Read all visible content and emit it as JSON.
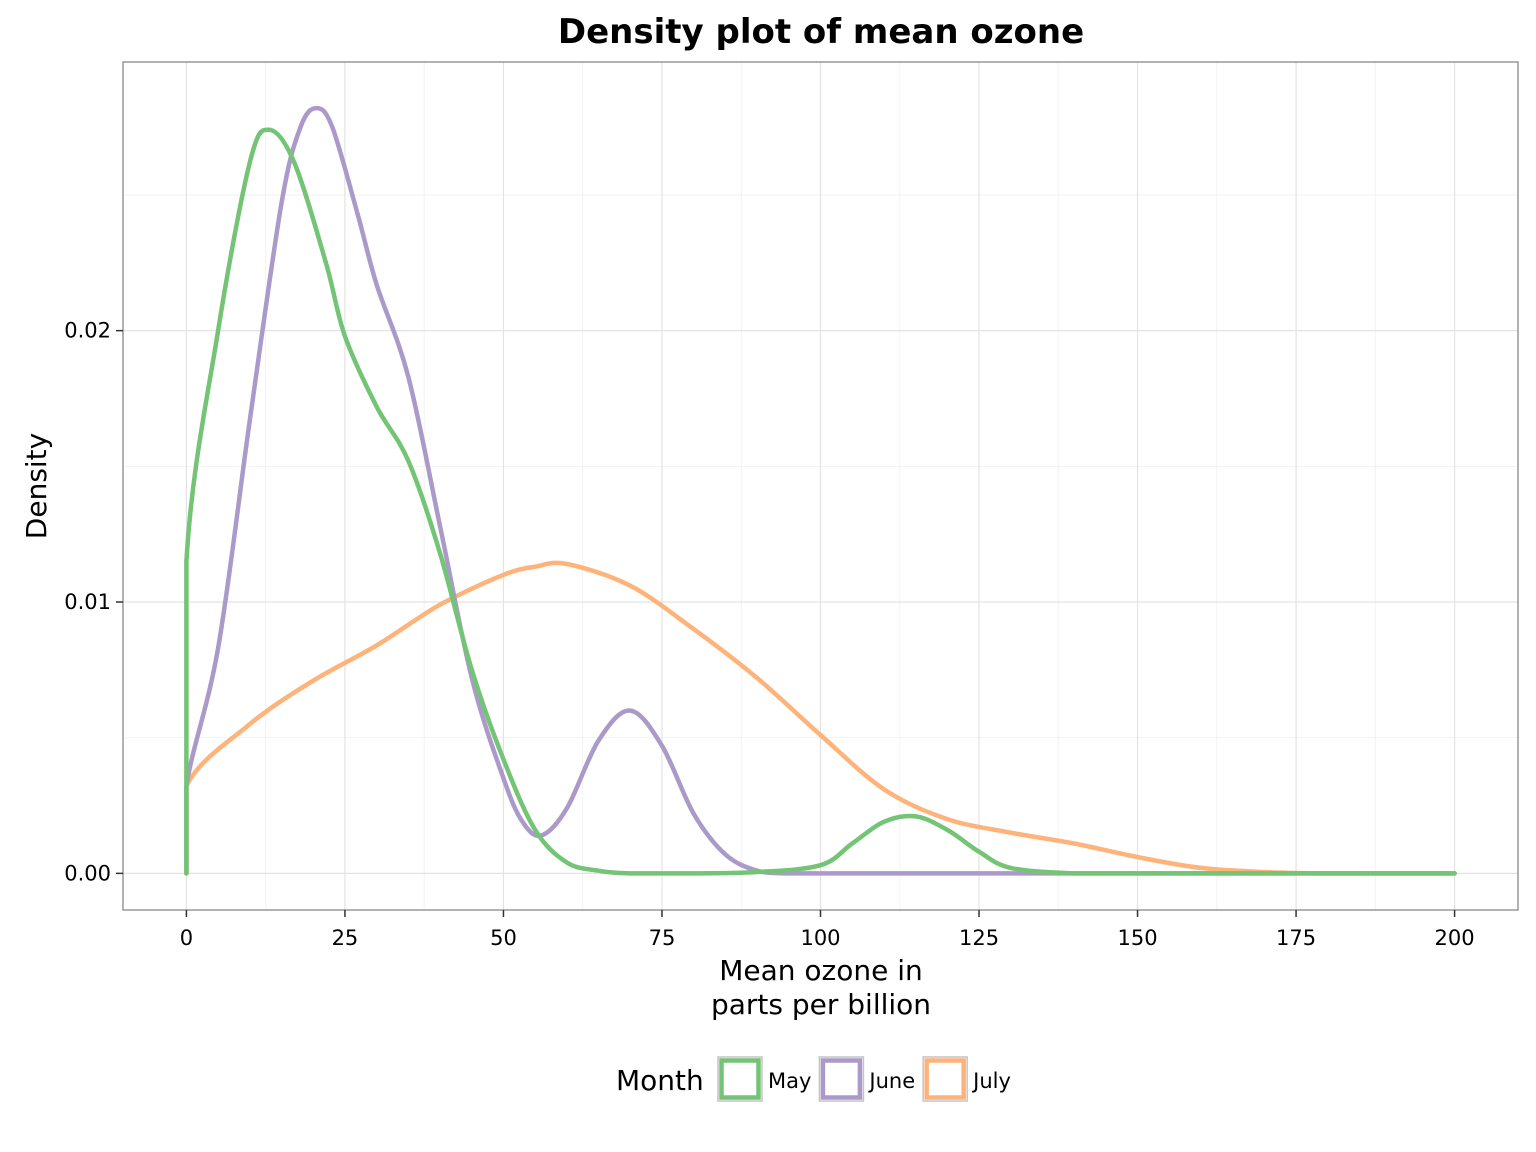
{
  "chart_data": {
    "type": "line",
    "title": "Density plot of mean ozone",
    "xlabel_lines": [
      "Mean ozone in",
      "parts per billion"
    ],
    "ylabel": "Density",
    "xlim": [
      -10,
      210
    ],
    "ylim": [
      -0.00135,
      0.0299
    ],
    "x_ticks": [
      0,
      25,
      50,
      75,
      100,
      125,
      150,
      175,
      200
    ],
    "x_tick_labels": [
      "0",
      "25",
      "50",
      "75",
      "100",
      "125",
      "150",
      "175",
      "200"
    ],
    "y_ticks": [
      0,
      0.01,
      0.02
    ],
    "y_tick_labels": [
      "0.00",
      "0.01",
      "0.02"
    ],
    "grid": true,
    "legend_position": "bottom",
    "legend_title": "Month",
    "series": [
      {
        "name": "May",
        "color": "#74c476",
        "x": [
          0,
          0,
          5,
          10,
          13,
          17,
          22,
          25,
          30,
          35,
          40,
          45,
          50,
          55,
          60,
          65,
          70,
          80,
          90,
          100,
          105,
          110,
          115,
          120,
          125,
          130,
          140,
          150,
          175,
          200,
          200
        ],
        "y": [
          0,
          0.0115,
          0.02,
          0.0262,
          0.0274,
          0.0262,
          0.0225,
          0.0198,
          0.0172,
          0.0152,
          0.0118,
          0.0075,
          0.0042,
          0.0016,
          0.0004,
          0.0001,
          0,
          0,
          5e-05,
          0.0003,
          0.0011,
          0.0019,
          0.0021,
          0.0016,
          0.0008,
          0.0002,
          0,
          0,
          0,
          0,
          0
        ]
      },
      {
        "name": "June",
        "color": "#ab9ac9",
        "x": [
          0,
          0,
          5,
          10,
          15,
          18,
          20.5,
          23,
          27,
          30,
          35,
          40,
          45,
          50,
          53,
          56,
          60,
          65,
          70,
          75,
          80,
          85,
          90,
          95,
          100,
          200,
          200
        ],
        "y": [
          0,
          0.0032,
          0.0083,
          0.0167,
          0.0247,
          0.0275,
          0.0282,
          0.0275,
          0.0243,
          0.0217,
          0.0183,
          0.0128,
          0.0072,
          0.0035,
          0.0019,
          0.0014,
          0.0024,
          0.0049,
          0.006,
          0.0047,
          0.0022,
          0.0007,
          0.0001,
          0,
          0,
          0,
          0
        ]
      },
      {
        "name": "July",
        "color": "#fdb37a",
        "x": [
          0,
          0,
          10,
          20,
          30,
          40,
          50,
          55,
          60,
          70,
          80,
          90,
          100,
          110,
          120,
          130,
          140,
          150,
          160,
          170,
          180,
          200,
          200
        ],
        "y": [
          0,
          0.0032,
          0.0055,
          0.0071,
          0.0084,
          0.0099,
          0.011,
          0.0113,
          0.0114,
          0.0106,
          0.009,
          0.0072,
          0.0051,
          0.0031,
          0.002,
          0.0015,
          0.0011,
          0.0006,
          0.0002,
          5e-05,
          0,
          0,
          0
        ]
      }
    ]
  }
}
